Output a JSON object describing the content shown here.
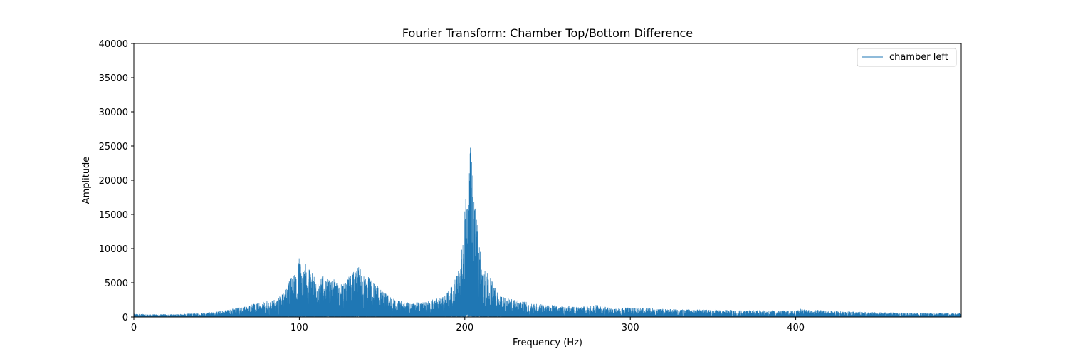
{
  "chart_data": {
    "type": "line",
    "title": "Fourier Transform: Chamber Top/Bottom Difference",
    "xlabel": "Frequency (Hz)",
    "ylabel": "Amplitude",
    "xlim": [
      0,
      500
    ],
    "ylim": [
      0,
      40000
    ],
    "x_ticks": [
      0,
      100,
      200,
      300,
      400
    ],
    "y_ticks": [
      0,
      5000,
      10000,
      15000,
      20000,
      25000,
      30000,
      35000,
      40000
    ],
    "grid": false,
    "legend_position": "top-right",
    "series": [
      {
        "name": "chamber left",
        "color": "#1f77b4",
        "x": [
          0,
          10,
          20,
          30,
          40,
          50,
          60,
          70,
          80,
          85,
          88,
          90,
          92,
          94,
          96,
          97,
          98,
          99,
          100,
          101,
          102,
          103,
          104,
          105,
          106,
          108,
          110,
          112,
          114,
          116,
          118,
          120,
          122,
          124,
          126,
          128,
          130,
          132,
          134,
          135,
          136,
          137,
          138,
          139,
          140,
          142,
          144,
          146,
          148,
          150,
          152,
          155,
          158,
          160,
          165,
          170,
          175,
          180,
          185,
          188,
          190,
          192,
          194,
          196,
          198,
          199,
          200,
          201,
          202,
          203,
          203.5,
          204,
          204.5,
          205,
          206,
          207,
          208,
          209,
          210,
          212,
          214,
          216,
          218,
          220,
          222,
          225,
          230,
          235,
          240,
          250,
          260,
          270,
          280,
          290,
          300,
          310,
          320,
          340,
          360,
          380,
          400,
          402,
          410,
          420,
          440,
          460,
          480,
          500
        ],
        "y": [
          500,
          400,
          400,
          450,
          600,
          800,
          1300,
          1800,
          2300,
          2600,
          3000,
          3600,
          4500,
          5500,
          6800,
          6200,
          7200,
          8000,
          9000,
          8300,
          8000,
          7600,
          8200,
          7500,
          7000,
          6500,
          6000,
          5500,
          6200,
          5800,
          5500,
          5400,
          5600,
          5000,
          4800,
          5200,
          6000,
          6500,
          6800,
          7000,
          7500,
          7200,
          6800,
          6500,
          6300,
          6000,
          5400,
          5000,
          4500,
          4000,
          3600,
          3000,
          2600,
          2400,
          2200,
          2100,
          2300,
          2500,
          2900,
          3200,
          3800,
          4500,
          5500,
          7000,
          9500,
          12000,
          16000,
          19500,
          18000,
          23000,
          29000,
          25000,
          24000,
          21000,
          17000,
          15500,
          13500,
          11000,
          9000,
          7500,
          6500,
          5500,
          4500,
          3800,
          3200,
          2800,
          2500,
          2300,
          2100,
          1800,
          1600,
          1500,
          1800,
          1300,
          1400,
          1400,
          1200,
          1100,
          1050,
          1000,
          950,
          1200,
          1100,
          900,
          750,
          650,
          600,
          550
        ]
      }
    ]
  }
}
